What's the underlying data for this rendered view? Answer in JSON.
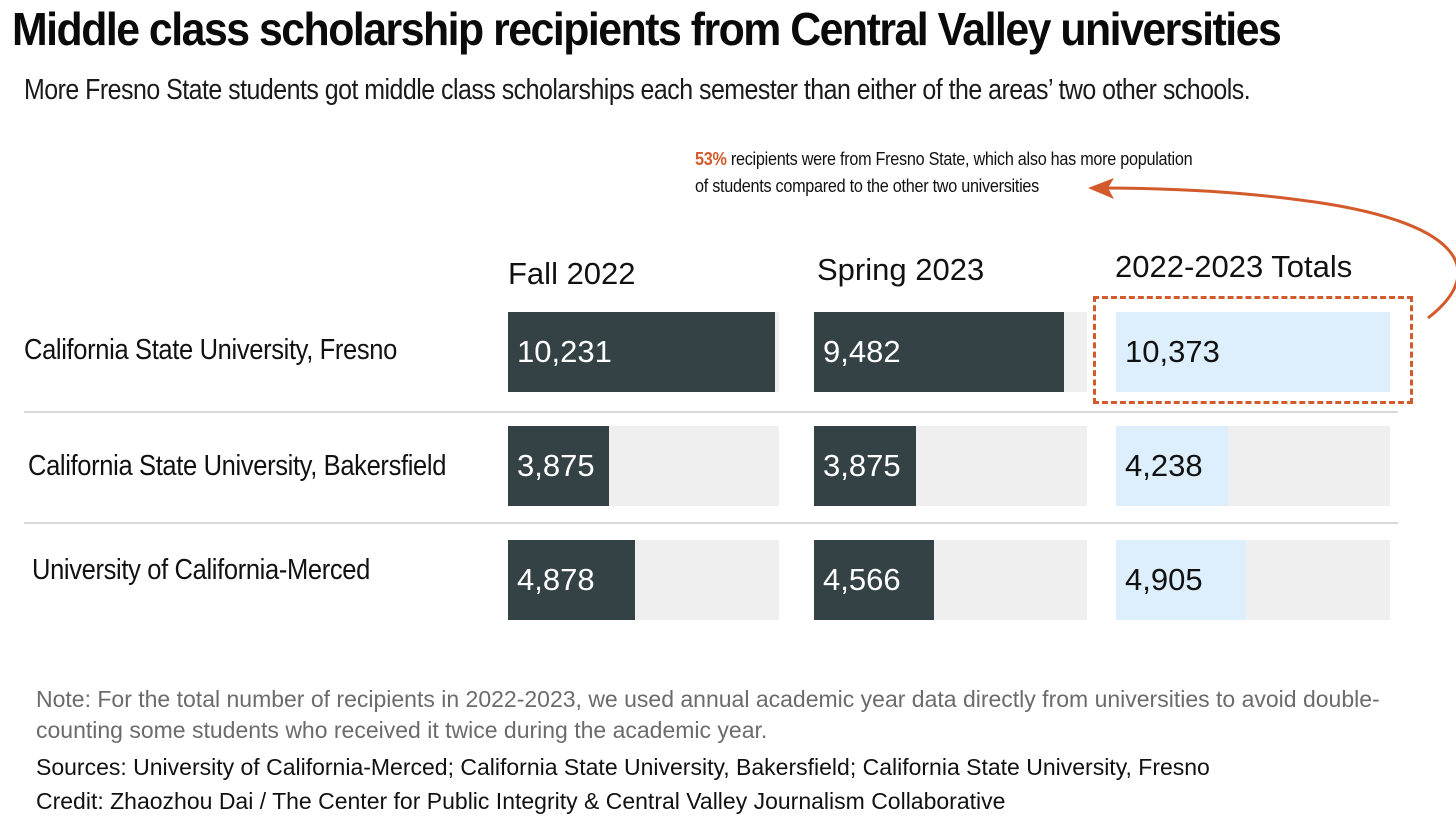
{
  "title": "Middle class scholarship recipients from Central Valley universities",
  "subtitle": "More Fresno State students got middle class scholarships each semester than either of the areas’ two other schools.",
  "annotation": {
    "highlight": "53%",
    "text_line1": " recipients were from Fresno State, which also has more population",
    "text_line2": "of students compared to the other two universities"
  },
  "colors": {
    "dark_bar": "#344245",
    "light_bar": "#ddeefc",
    "track": "#efefef",
    "accent": "#d35a2b"
  },
  "chart_data": {
    "type": "bar",
    "title": "Middle class scholarship recipients from Central Valley universities",
    "columns": [
      "Fall 2022",
      "Spring 2023",
      "2022-2023 Totals"
    ],
    "categories": [
      "California State University, Fresno",
      "California State University, Bakersfield",
      "University of California-Merced"
    ],
    "series": [
      {
        "name": "Fall 2022",
        "values": [
          10231,
          3875,
          4878
        ],
        "labels": [
          "10,231",
          "3,875",
          "4,878"
        ]
      },
      {
        "name": "Spring 2023",
        "values": [
          9482,
          3875,
          4566
        ],
        "labels": [
          "9,482",
          "3,875",
          "4,566"
        ]
      },
      {
        "name": "2022-2023 Totals",
        "values": [
          10373,
          4238,
          4905
        ],
        "labels": [
          "10,373",
          "4,238",
          "4,905"
        ]
      }
    ],
    "xlim": [
      0,
      10373
    ],
    "highlighted": {
      "category": "California State University, Fresno",
      "column": "2022-2023 Totals"
    }
  },
  "footer": {
    "note": "Note: For the total number of recipients in 2022-2023, we used annual academic year data directly from universities to avoid double-counting some students who received it twice during the academic year.",
    "sources": "Sources: University of California-Merced; California State University, Bakersfield; California State University, Fresno",
    "credit": "Credit: Zhaozhou Dai / The Center for Public Integrity & Central Valley Journalism Collaborative"
  }
}
